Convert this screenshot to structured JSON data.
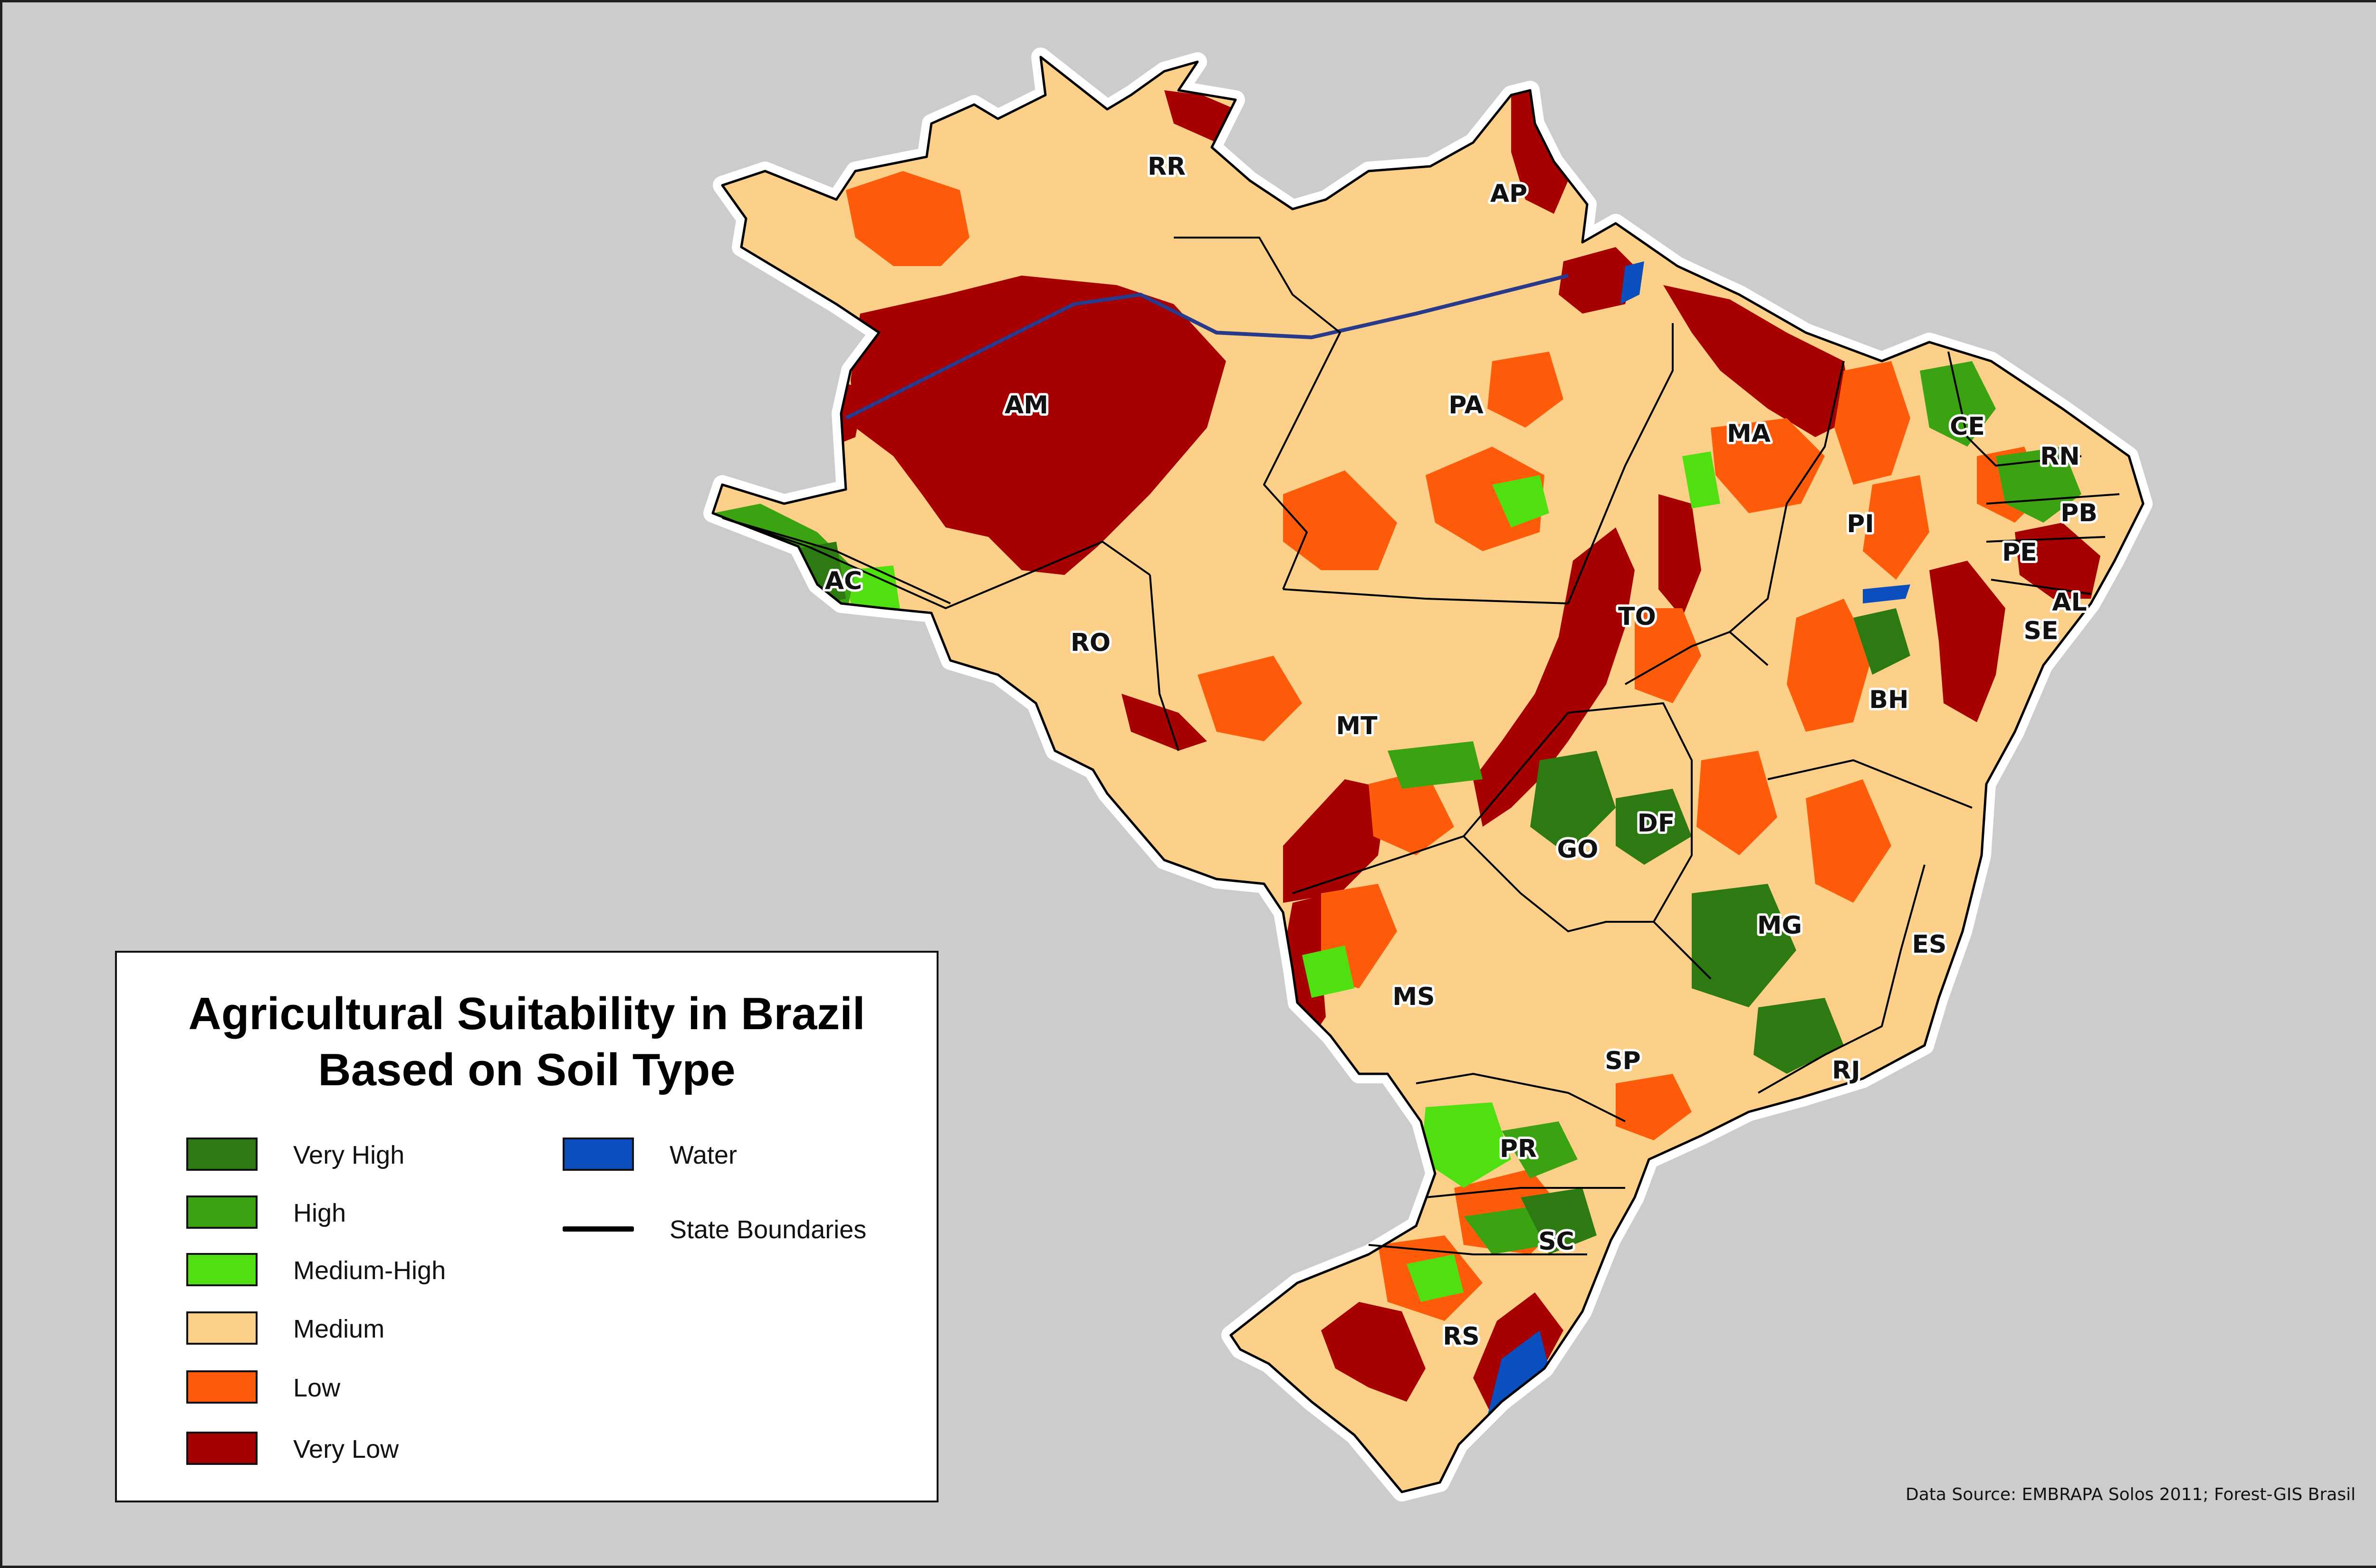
{
  "title_line1": "Agricultural Suitability in Brazil",
  "title_line2": "Based on Soil Type",
  "legend": {
    "very_high": "Very High",
    "high": "High",
    "medium_high": "Medium-High",
    "medium": "Medium",
    "low": "Low",
    "very_low": "Very Low",
    "water": "Water",
    "state_boundaries": "State Boundaries"
  },
  "colors": {
    "very_high": "#2d7a12",
    "high": "#3ba312",
    "medium_high": "#50e012",
    "medium": "#fdd08a",
    "low": "#fe5c0a",
    "very_low": "#a60000",
    "water": "#0a4fbd",
    "background": "#cccccc",
    "boundary": "#000000"
  },
  "states": {
    "rr": "RR",
    "ap": "AP",
    "am": "AM",
    "pa": "PA",
    "ma": "MA",
    "ce": "CE",
    "rn": "RN",
    "pb": "PB",
    "pi": "PI",
    "pe": "PE",
    "al": "AL",
    "se": "SE",
    "ac": "AC",
    "ro": "RO",
    "to": "TO",
    "bh": "BH",
    "mt": "MT",
    "df": "DF",
    "go": "GO",
    "mg": "MG",
    "ms": "MS",
    "es": "ES",
    "sp": "SP",
    "rj": "RJ",
    "pr": "PR",
    "sc": "SC",
    "rs": "RS"
  },
  "source": "Data Source: EMBRAPA Solos 2011; Forest-GIS Brasil"
}
